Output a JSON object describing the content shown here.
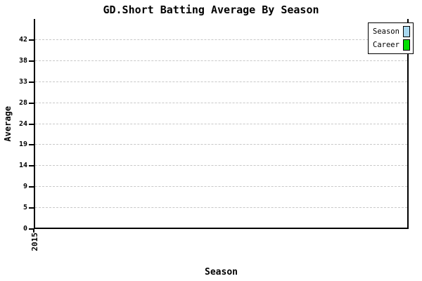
{
  "chart_data": {
    "type": "bar",
    "title": "GD.Short Batting Average By Season",
    "xlabel": "Season",
    "ylabel": "Average",
    "categories": [
      "2015"
    ],
    "series": [
      {
        "name": "Season",
        "color": "#a8d8f0",
        "values": [
          null
        ]
      },
      {
        "name": "Career",
        "color": "#00e000",
        "values": [
          null
        ]
      }
    ],
    "yticks": [
      0,
      5,
      9,
      14,
      19,
      24,
      28,
      33,
      38,
      42
    ],
    "ylim": [
      0,
      46
    ],
    "grid": "horizontal-dashed",
    "gridline_color": "#c8c8c8",
    "legend_position": "top-right"
  },
  "colors": {
    "background": "#ffffff",
    "axis": "#000000",
    "text": "#000000"
  }
}
